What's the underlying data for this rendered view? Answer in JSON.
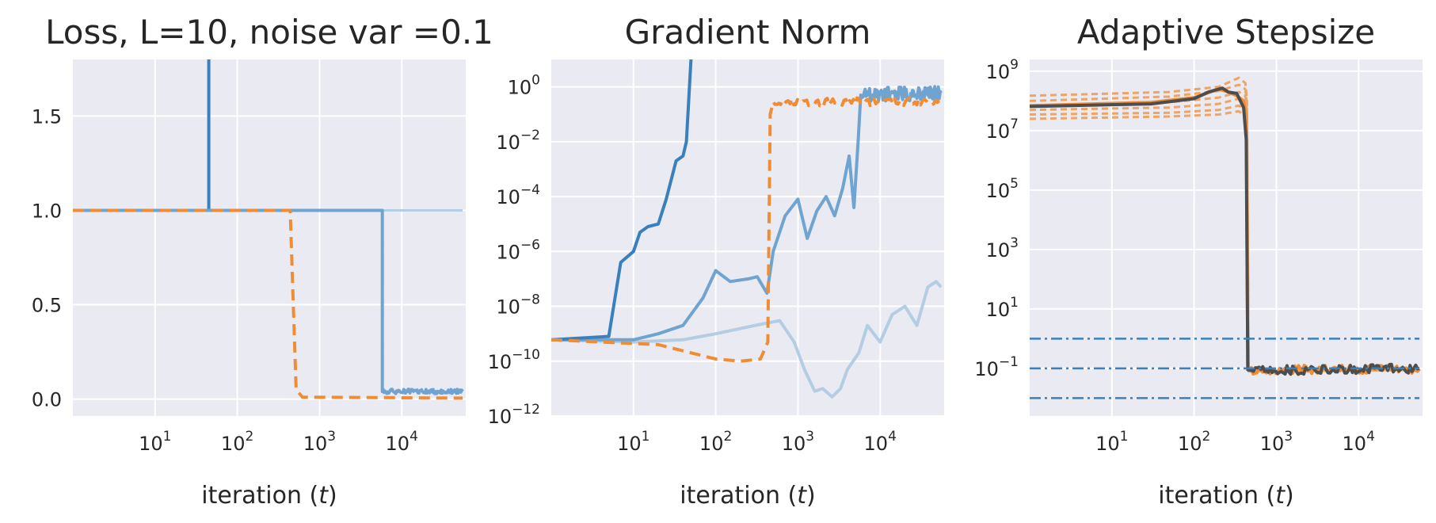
{
  "chart_data": [
    {
      "type": "line",
      "title": "Loss, L=10, noise var =0.1",
      "xlabel": "iteration (t)",
      "ylabel": "",
      "xscale": "log",
      "yscale": "linear",
      "xlim": [
        1,
        60000
      ],
      "ylim": [
        -0.09,
        1.8
      ],
      "grid": true,
      "xticks": [
        {
          "value": 10,
          "base": "10",
          "exp": "1"
        },
        {
          "value": 100,
          "base": "10",
          "exp": "2"
        },
        {
          "value": 1000,
          "base": "10",
          "exp": "3"
        },
        {
          "value": 10000,
          "base": "10",
          "exp": "4"
        }
      ],
      "yticks": [
        {
          "value": 0,
          "label": "0.0"
        },
        {
          "value": 0.5,
          "label": "0.5"
        },
        {
          "value": 1,
          "label": "1.0"
        },
        {
          "value": 1.5,
          "label": "1.5"
        }
      ],
      "series": [
        {
          "color": "#b3cde3",
          "width": 3,
          "dash": "",
          "points": [
            [
              1,
              1.0
            ],
            [
              55000,
              1.0
            ]
          ]
        },
        {
          "color": "#3a80bd",
          "width": 4,
          "dash": "",
          "points": [
            [
              1,
              1.0
            ],
            [
              45,
              1.0
            ],
            [
              45,
              1.8
            ]
          ]
        },
        {
          "color": "#6fa4d1",
          "width": 4,
          "dash": "",
          "points": [
            [
              1,
              1.0
            ],
            [
              5800,
              1.0
            ],
            [
              5800,
              0.04
            ],
            [
              55000,
              0.04
            ]
          ],
          "noisy_from": 5800,
          "noise_amp": 0.012
        },
        {
          "color": "#f08c34",
          "width": 4,
          "dash": "14,8",
          "points": [
            [
              1,
              1.0
            ],
            [
              440,
              1.0
            ],
            [
              480,
              0.5
            ],
            [
              520,
              0.05
            ],
            [
              620,
              0.01
            ],
            [
              55000,
              0.005
            ]
          ],
          "noisy_from": 5800,
          "noise_amp": 0.008
        }
      ]
    },
    {
      "type": "line",
      "title": "Gradient Norm",
      "xlabel": "iteration (t)",
      "ylabel": "",
      "xscale": "log",
      "yscale": "log",
      "xlim": [
        1,
        60000
      ],
      "ylim": [
        1e-12,
        10
      ],
      "grid": true,
      "xticks": [
        {
          "value": 10,
          "base": "10",
          "exp": "1"
        },
        {
          "value": 100,
          "base": "10",
          "exp": "2"
        },
        {
          "value": 1000,
          "base": "10",
          "exp": "3"
        },
        {
          "value": 10000,
          "base": "10",
          "exp": "4"
        }
      ],
      "yticks": [
        {
          "value": 1e-12,
          "base": "10",
          "exp": "−12"
        },
        {
          "value": 1e-10,
          "base": "10",
          "exp": "−10"
        },
        {
          "value": 1e-08,
          "base": "10",
          "exp": "−8"
        },
        {
          "value": 1e-06,
          "base": "10",
          "exp": "−6"
        },
        {
          "value": 0.0001,
          "base": "10",
          "exp": "−4"
        },
        {
          "value": 0.01,
          "base": "10",
          "exp": "−2"
        },
        {
          "value": 1,
          "base": "10",
          "exp": "0"
        }
      ],
      "series": [
        {
          "color": "#b3cde3",
          "width": 4,
          "dash": "",
          "points": [
            [
              1,
              6e-10
            ],
            [
              10,
              5e-10
            ],
            [
              40,
              6e-10
            ],
            [
              100,
              1e-09
            ],
            [
              300,
              2e-09
            ],
            [
              600,
              3e-09
            ],
            [
              900,
              5e-10
            ],
            [
              1200,
              5e-11
            ],
            [
              1600,
              8e-12
            ],
            [
              2000,
              1e-11
            ],
            [
              2600,
              5e-12
            ],
            [
              3300,
              1e-11
            ],
            [
              4000,
              5e-11
            ],
            [
              5500,
              2e-10
            ],
            [
              7000,
              2e-09
            ],
            [
              10000,
              5e-10
            ],
            [
              14000,
              5e-09
            ],
            [
              20000,
              1e-08
            ],
            [
              28000,
              2e-09
            ],
            [
              38000,
              5e-08
            ],
            [
              48000,
              8e-08
            ],
            [
              55000,
              5e-08
            ]
          ]
        },
        {
          "color": "#6fa4d1",
          "width": 4,
          "dash": "",
          "points": [
            [
              1,
              6e-10
            ],
            [
              10,
              6e-10
            ],
            [
              20,
              1e-09
            ],
            [
              40,
              2e-09
            ],
            [
              70,
              2e-08
            ],
            [
              100,
              2e-07
            ],
            [
              150,
              8e-08
            ],
            [
              250,
              1e-07
            ],
            [
              320,
              1.2e-07
            ],
            [
              420,
              3e-08
            ],
            [
              500,
              1e-06
            ],
            [
              700,
              2e-05
            ],
            [
              1000,
              8e-05
            ],
            [
              1300,
              3e-06
            ],
            [
              1700,
              3e-05
            ],
            [
              2200,
              0.0001
            ],
            [
              2800,
              2e-05
            ],
            [
              3500,
              0.0002
            ],
            [
              4200,
              0.003
            ],
            [
              4800,
              4e-05
            ],
            [
              5400,
              0.01
            ],
            [
              5800,
              0.5
            ],
            [
              55000,
              0.6
            ]
          ],
          "noisy_from": 5800,
          "noise_amp": 0.25
        },
        {
          "color": "#3a80bd",
          "width": 4,
          "dash": "",
          "points": [
            [
              1,
              6e-10
            ],
            [
              5,
              8e-10
            ],
            [
              7,
              4e-07
            ],
            [
              10,
              1e-06
            ],
            [
              12,
              5e-06
            ],
            [
              15,
              8e-06
            ],
            [
              20,
              1e-05
            ],
            [
              25,
              8e-05
            ],
            [
              33,
              0.002
            ],
            [
              40,
              0.003
            ],
            [
              44,
              0.01
            ],
            [
              50,
              10
            ]
          ]
        },
        {
          "color": "#f08c34",
          "width": 4,
          "dash": "14,8",
          "points": [
            [
              1,
              6e-10
            ],
            [
              20,
              4e-10
            ],
            [
              50,
              2e-10
            ],
            [
              100,
              1.2e-10
            ],
            [
              200,
              1e-10
            ],
            [
              350,
              1.2e-10
            ],
            [
              430,
              5e-10
            ],
            [
              460,
              0.1
            ],
            [
              500,
              0.28
            ],
            [
              55000,
              0.3
            ]
          ],
          "noisy_from": 500,
          "noise_amp": 0.15
        }
      ]
    },
    {
      "type": "line",
      "title": "Adaptive Stepsize",
      "xlabel": "iteration (t)",
      "ylabel": "",
      "xscale": "log",
      "yscale": "log",
      "xlim": [
        1,
        60000
      ],
      "ylim": [
        0.0025,
        2500000000.0
      ],
      "grid": true,
      "xticks": [
        {
          "value": 10,
          "base": "10",
          "exp": "1"
        },
        {
          "value": 100,
          "base": "10",
          "exp": "2"
        },
        {
          "value": 1000,
          "base": "10",
          "exp": "3"
        },
        {
          "value": 10000,
          "base": "10",
          "exp": "4"
        }
      ],
      "yticks": [
        {
          "value": 0.1,
          "base": "10",
          "exp": "−1"
        },
        {
          "value": 10,
          "base": "10",
          "exp": "1"
        },
        {
          "value": 1000,
          "base": "10",
          "exp": "3"
        },
        {
          "value": 100000,
          "base": "10",
          "exp": "5"
        },
        {
          "value": 10000000,
          "base": "10",
          "exp": "7"
        },
        {
          "value": 1000000000,
          "base": "10",
          "exp": "9"
        }
      ],
      "series": [
        {
          "color": "#f0a464",
          "width": 3,
          "dash": "8,5",
          "points": [
            [
              1,
              150000000.0
            ],
            [
              50,
              200000000.0
            ],
            [
              200,
              300000000.0
            ],
            [
              350,
              600000000.0
            ],
            [
              420,
              400000000.0
            ],
            [
              440,
              100000000.0
            ],
            [
              460,
              0.08
            ],
            [
              55000,
              0.09
            ]
          ]
        },
        {
          "color": "#f0a464",
          "width": 3,
          "dash": "8,5",
          "points": [
            [
              1,
              100000000.0
            ],
            [
              50,
              140000000.0
            ],
            [
              200,
              220000000.0
            ],
            [
              350,
              350000000.0
            ],
            [
              420,
              250000000.0
            ],
            [
              440,
              60000000.0
            ],
            [
              460,
              0.08
            ],
            [
              55000,
              0.09
            ]
          ]
        },
        {
          "color": "#f0a464",
          "width": 3,
          "dash": "8,5",
          "points": [
            [
              1,
              70000000.0
            ],
            [
              50,
              90000000.0
            ],
            [
              200,
              130000000.0
            ],
            [
              350,
              200000000.0
            ],
            [
              420,
              150000000.0
            ],
            [
              440,
              40000000.0
            ],
            [
              460,
              0.08
            ],
            [
              55000,
              0.09
            ]
          ]
        },
        {
          "color": "#f0a464",
          "width": 3,
          "dash": "8,5",
          "points": [
            [
              1,
              50000000.0
            ],
            [
              50,
              60000000.0
            ],
            [
              200,
              80000000.0
            ],
            [
              350,
              120000000.0
            ],
            [
              420,
              80000000.0
            ],
            [
              440,
              20000000.0
            ],
            [
              460,
              0.08
            ],
            [
              55000,
              0.09
            ]
          ]
        },
        {
          "color": "#f0a464",
          "width": 3,
          "dash": "8,5",
          "points": [
            [
              1,
              35000000.0
            ],
            [
              50,
              40000000.0
            ],
            [
              200,
              50000000.0
            ],
            [
              350,
              70000000.0
            ],
            [
              420,
              50000000.0
            ],
            [
              440,
              10000000.0
            ],
            [
              460,
              0.08
            ],
            [
              55000,
              0.09
            ]
          ]
        },
        {
          "color": "#f0a464",
          "width": 3,
          "dash": "8,5",
          "points": [
            [
              1,
              25000000.0
            ],
            [
              50,
              30000000.0
            ],
            [
              200,
              35000000.0
            ],
            [
              350,
              45000000.0
            ],
            [
              420,
              30000000.0
            ],
            [
              440,
              5000000.0
            ],
            [
              460,
              0.08
            ],
            [
              55000,
              0.09
            ]
          ]
        },
        {
          "color": "#f08c34",
          "width": 4,
          "dash": "",
          "points": [
            [
              1,
              70000000.0
            ],
            [
              30,
              90000000.0
            ],
            [
              100,
              130000000.0
            ],
            [
              200,
              250000000.0
            ],
            [
              260,
              200000000.0
            ],
            [
              330,
              150000000.0
            ],
            [
              400,
              100000000.0
            ],
            [
              430,
              30000000.0
            ],
            [
              450,
              0.1
            ],
            [
              470,
              0.09
            ],
            [
              55000,
              0.095
            ]
          ],
          "noisy_from": 470,
          "noise_amp": 0.15
        },
        {
          "color": "#4d4d4d",
          "width": 4,
          "dash": "",
          "points": [
            [
              1,
              65000000.0
            ],
            [
              30,
              80000000.0
            ],
            [
              100,
              120000000.0
            ],
            [
              150,
              200000000.0
            ],
            [
              220,
              270000000.0
            ],
            [
              260,
              200000000.0
            ],
            [
              330,
              180000000.0
            ],
            [
              400,
              60000000.0
            ],
            [
              430,
              5000000.0
            ],
            [
              450,
              0.09
            ],
            [
              500,
              0.085
            ],
            [
              55000,
              0.1
            ]
          ],
          "noisy_from": 500,
          "noise_amp": 0.15
        },
        {
          "color": "#3a80bd",
          "width": 2.5,
          "dash": "14,5,3,5",
          "points": [
            [
              1,
              1.0
            ],
            [
              55000,
              1.0
            ]
          ]
        },
        {
          "color": "#3a80bd",
          "width": 2.5,
          "dash": "14,5,3,5",
          "points": [
            [
              1,
              0.1
            ],
            [
              55000,
              0.1
            ]
          ]
        },
        {
          "color": "#3a80bd",
          "width": 2.5,
          "dash": "14,5,3,5",
          "points": [
            [
              1,
              0.01
            ],
            [
              55000,
              0.01
            ]
          ]
        }
      ]
    }
  ]
}
